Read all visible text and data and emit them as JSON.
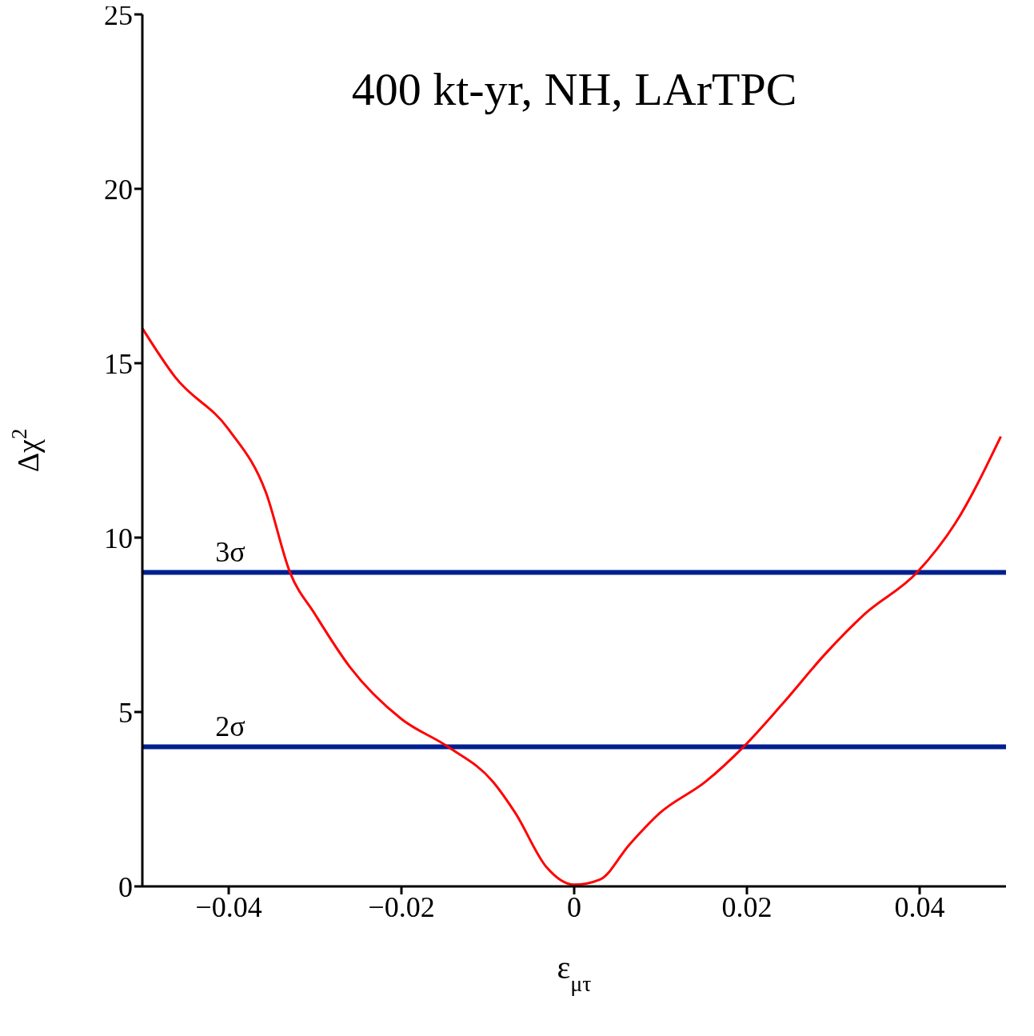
{
  "chart_data": {
    "type": "line",
    "title": "400 kt-yr, NH, LArTPC",
    "xlabel": "ε$_{μτ}$",
    "ylabel": "Δχ$^{2}$",
    "xlim": [
      -0.05,
      0.05
    ],
    "ylim": [
      0,
      25
    ],
    "xticks": [
      {
        "value": -0.04,
        "label": "−0.04"
      },
      {
        "value": -0.02,
        "label": "−0.02"
      },
      0,
      0.02,
      0.04
    ],
    "yticks": [
      0,
      5,
      10,
      15,
      20,
      25
    ],
    "marker": "none",
    "line_style": "solid",
    "series": [
      {
        "color": "#ff0000",
        "x": [
          -0.05,
          -0.0462,
          -0.04,
          -0.0357,
          -0.0329,
          -0.03,
          -0.026,
          -0.02,
          -0.0146,
          -0.0094,
          -0.0068,
          -0.0032,
          0,
          0.003,
          0.0064,
          0.0099,
          0.0152,
          0.0196,
          0.024,
          0.0292,
          0.0336,
          0.0397,
          0.0441,
          0.0494
        ],
        "values": [
          16,
          14.6,
          13.1,
          11.3,
          9,
          7.8,
          6.3,
          4.8,
          4,
          3,
          2.1,
          0.55,
          0.05,
          0.2,
          1.2,
          2.1,
          3,
          4,
          5.2,
          6.7,
          7.8,
          9,
          10.4,
          12.9
        ]
      }
    ],
    "ref_lines": [
      {
        "axis": "y",
        "value": 9,
        "label": "3σ",
        "color": "#00208f"
      },
      {
        "axis": "y",
        "value": 4,
        "label": "2σ",
        "color": "#00208f"
      }
    ]
  }
}
